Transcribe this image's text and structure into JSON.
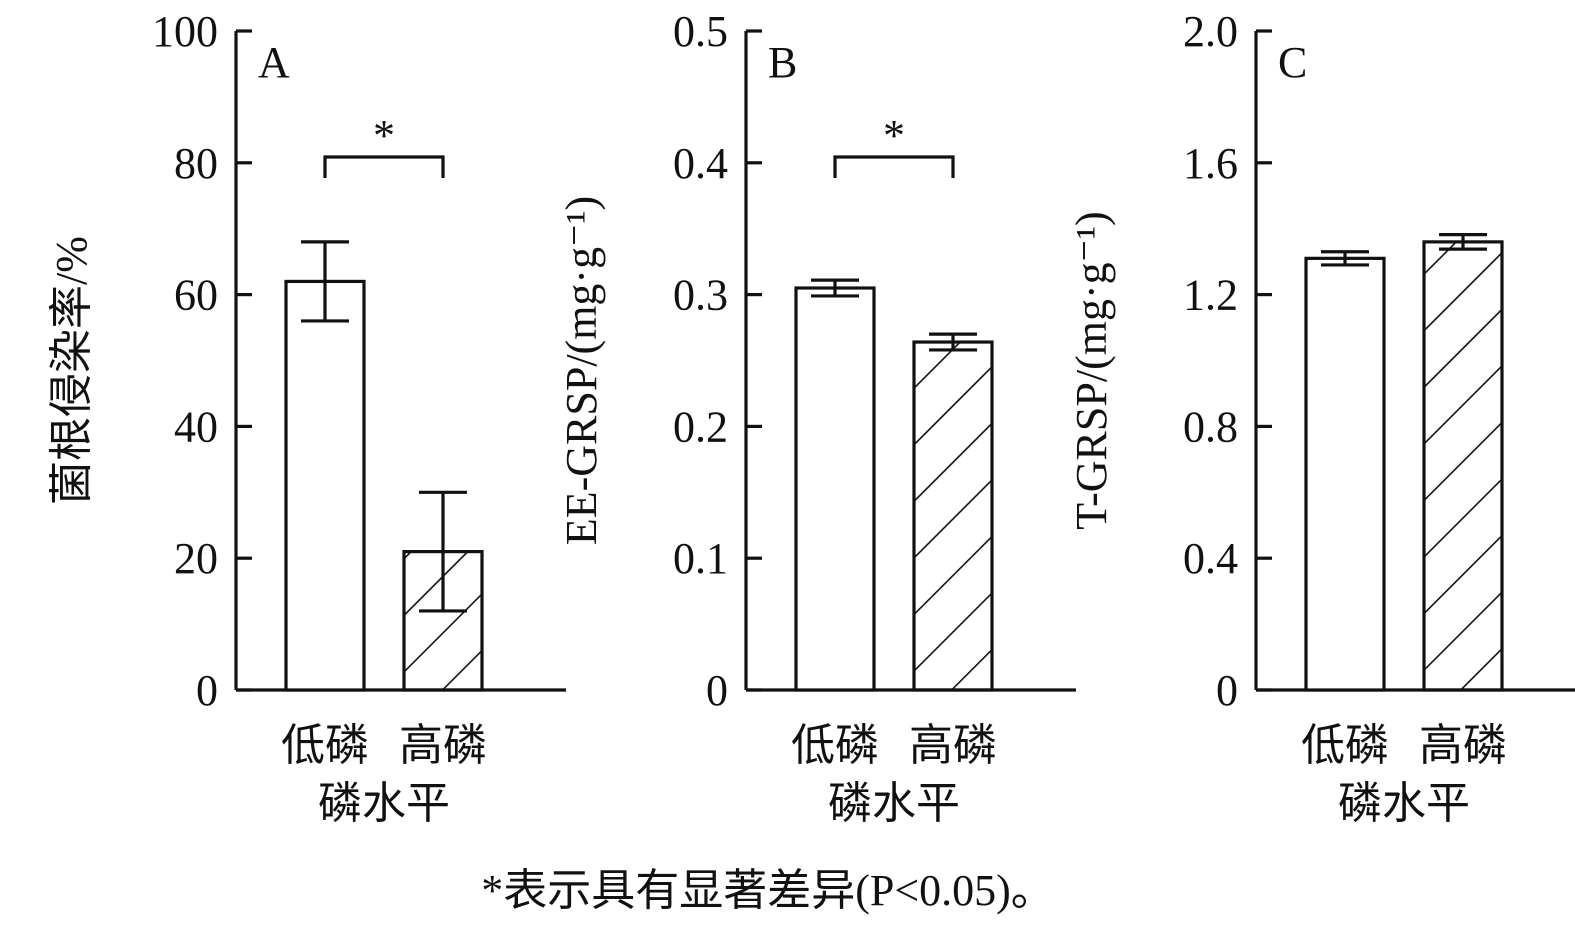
{
  "chart_data": [
    {
      "type": "bar",
      "panel_label": "A",
      "ylabel": "菌根侵染率/%",
      "xlabel": "磷水平",
      "categories": [
        "低磷",
        "高磷"
      ],
      "values": [
        62,
        21
      ],
      "errors": [
        6,
        9
      ],
      "ylim": [
        0,
        100
      ],
      "yticks": [
        0,
        20,
        40,
        60,
        80,
        100
      ],
      "ytick_labels": [
        "0",
        "20",
        "40",
        "60",
        "80",
        "100"
      ],
      "significance": "*",
      "fills": [
        "none",
        "hatched"
      ]
    },
    {
      "type": "bar",
      "panel_label": "B",
      "ylabel": "EE-GRSP/(mg·g⁻¹)",
      "xlabel": "磷水平",
      "categories": [
        "低磷",
        "高磷"
      ],
      "values": [
        0.305,
        0.264
      ],
      "errors": [
        0.006,
        0.006
      ],
      "ylim": [
        0,
        0.5
      ],
      "yticks": [
        0,
        0.1,
        0.2,
        0.3,
        0.4,
        0.5
      ],
      "ytick_labels": [
        "0",
        "0.1",
        "0.2",
        "0.3",
        "0.4",
        "0.5"
      ],
      "significance": "*",
      "fills": [
        "none",
        "hatched"
      ]
    },
    {
      "type": "bar",
      "panel_label": "C",
      "ylabel": "T-GRSP/(mg·g⁻¹)",
      "xlabel": "磷水平",
      "categories": [
        "低磷",
        "高磷"
      ],
      "values": [
        1.31,
        1.36
      ],
      "errors": [
        0.02,
        0.022
      ],
      "ylim": [
        0,
        2.0
      ],
      "yticks": [
        0,
        0.4,
        0.8,
        1.2,
        1.6,
        2.0
      ],
      "ytick_labels": [
        "0",
        "0.4",
        "0.8",
        "1.2",
        "1.6",
        "2.0"
      ],
      "significance": "",
      "fills": [
        "none",
        "hatched"
      ]
    }
  ],
  "footnote": "*表示具有显著差异(P<0.05)。",
  "colors": {
    "stroke": "#111111",
    "background": "#ffffff"
  }
}
